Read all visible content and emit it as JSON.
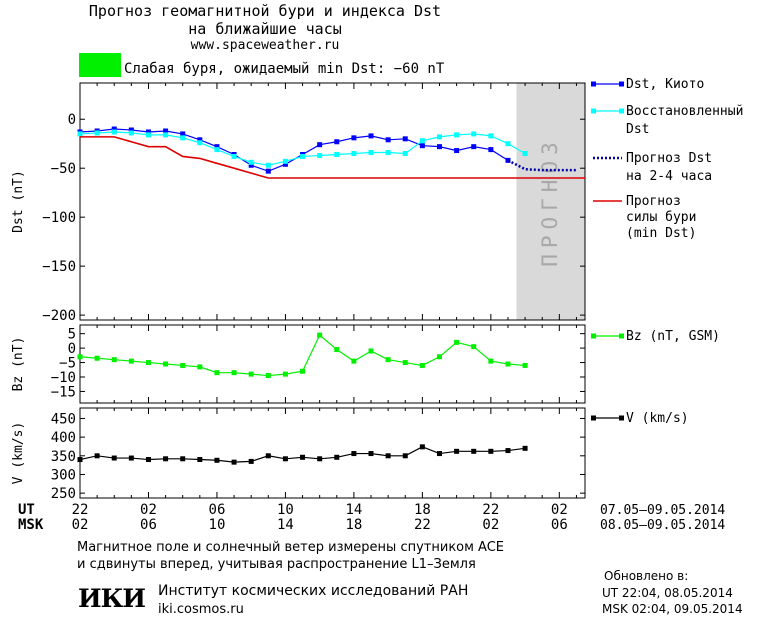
{
  "header": {
    "title_line1": "Прогноз геомагнитной бури и индекса Dst",
    "title_line2": "на ближайшие часы",
    "site": "www.spaceweather.ru",
    "storm_text": "Слабая буря, ожидаемый min Dst: −60 nT",
    "storm_color": "#00f000"
  },
  "chart_data": [
    {
      "type": "line",
      "ylabel": "Dst (nT)",
      "ylim": [
        -205,
        37
      ],
      "yticks": [
        0,
        -50,
        -100,
        -150,
        -200
      ],
      "ytick_labels": [
        "0",
        "−50",
        "−100",
        "−150",
        "−200"
      ],
      "forecast_label": "ПРОГНОЗ",
      "x": [
        0,
        1,
        2,
        3,
        4,
        5,
        6,
        7,
        8,
        9,
        10,
        11,
        12,
        13,
        14,
        15,
        16,
        17,
        18,
        19,
        20,
        21,
        22,
        23,
        24,
        25
      ],
      "series": [
        {
          "name": "Dst, Киото",
          "color": "#0000ff",
          "x": [
            0,
            1,
            2,
            3,
            4,
            5,
            6,
            7,
            8,
            9,
            10,
            11,
            12,
            13,
            14,
            15,
            16,
            17,
            18,
            19,
            20,
            21,
            22,
            23,
            24,
            25
          ],
          "values": [
            -13,
            -12,
            -10,
            -11,
            -13,
            -12,
            -15,
            -21,
            -28,
            -36,
            -47,
            -53,
            -46,
            -36,
            -26,
            -23,
            -19,
            -17,
            -21,
            -20,
            -27,
            -28,
            -32,
            -28,
            -31,
            -42
          ]
        },
        {
          "name_line1": "Восстановленный",
          "name_line2": "Dst",
          "color": "#00ffff",
          "x": [
            0,
            1,
            2,
            3,
            4,
            5,
            6,
            7,
            8,
            9,
            10,
            11,
            12,
            13,
            14,
            15,
            16,
            17,
            18,
            19,
            20,
            21,
            22,
            23,
            24,
            25,
            26
          ],
          "values": [
            -15,
            -14,
            -13,
            -14,
            -16,
            -16,
            -19,
            -24,
            -31,
            -38,
            -44,
            -47,
            -43,
            -38,
            -37,
            -36,
            -35,
            -34,
            -34,
            -35,
            -22,
            -18,
            -16,
            -15,
            -17,
            -25,
            -35
          ]
        },
        {
          "name_line1": "Прогноз Dst",
          "name_line2": "на 2-4 часа",
          "color": "#0000aa",
          "x": [
            25,
            26,
            27,
            28,
            29
          ],
          "values": [
            -42,
            -51,
            -52,
            -52,
            -52
          ]
        },
        {
          "name_line1": "Прогноз",
          "name_line2": "силы бури",
          "name_line3": "(min Dst)",
          "color": "#dd0000",
          "x": [
            0,
            1,
            2,
            3,
            4,
            5,
            6,
            7,
            8,
            9,
            10,
            11,
            12,
            29.5
          ],
          "values": [
            -18,
            -18,
            -18,
            -23,
            -28,
            -28,
            -38,
            -40,
            -45,
            -50,
            -55,
            -60,
            -60,
            -60
          ]
        }
      ]
    },
    {
      "type": "line",
      "ylabel": "Bz (nT)",
      "ylim": [
        -19,
        8
      ],
      "yticks": [
        5,
        0,
        -5,
        -10,
        -15
      ],
      "ytick_labels": [
        "5",
        "0",
        "−5",
        "−10",
        "−15"
      ],
      "series": [
        {
          "name": "Bz (nT, GSM)",
          "color": "#00f000",
          "x": [
            0,
            1,
            2,
            3,
            4,
            5,
            6,
            7,
            8,
            9,
            10,
            11,
            12,
            13,
            14,
            15,
            16,
            17,
            18,
            19,
            20,
            21,
            22,
            23,
            24,
            25,
            26
          ],
          "values": [
            -3,
            -3.5,
            -4,
            -4.5,
            -5,
            -5.5,
            -6,
            -6.5,
            -8.5,
            -8.5,
            -9,
            -9.5,
            -9,
            -8,
            4.5,
            -0.5,
            -4.5,
            -1,
            -4,
            -5,
            -6,
            -3,
            2,
            0.5,
            -4.5,
            -5.5,
            -6
          ]
        }
      ]
    },
    {
      "type": "line",
      "ylabel": "V (km/s)",
      "ylim": [
        237,
        478
      ],
      "yticks": [
        450,
        400,
        350,
        300,
        250
      ],
      "ytick_labels": [
        "450",
        "400",
        "350",
        "300",
        "250"
      ],
      "series": [
        {
          "name": "V (km/s)",
          "color": "#000000",
          "x": [
            0,
            1,
            2,
            3,
            4,
            5,
            6,
            7,
            8,
            9,
            10,
            11,
            12,
            13,
            14,
            15,
            16,
            17,
            18,
            19,
            20,
            21,
            22,
            23,
            24,
            25,
            26
          ],
          "values": [
            340,
            350,
            344,
            344,
            340,
            342,
            342,
            340,
            338,
            333,
            335,
            350,
            342,
            346,
            342,
            346,
            356,
            356,
            350,
            350,
            374,
            356,
            362,
            362,
            362,
            364,
            370
          ]
        }
      ]
    }
  ],
  "time_axis": {
    "ut_label": "UT",
    "msk_label": "MSK",
    "ut_ticks": [
      "22",
      "02",
      "06",
      "10",
      "14",
      "18",
      "22",
      "02"
    ],
    "msk_ticks": [
      "02",
      "06",
      "10",
      "14",
      "18",
      "22",
      "02",
      "06"
    ],
    "ut_range": "07.05–09.05.2014",
    "msk_range": "08.05–09.05.2014"
  },
  "footer": {
    "line1": "Магнитное поле и солнечный ветер измерены спутником ACE",
    "line2": "и сдвинуты вперед, учитывая распространение L1–Земля",
    "logo_text": "ИКИ",
    "institute": "Институт космических исследований РАН",
    "institute_site": "iki.cosmos.ru",
    "updated_label": "Обновлено в:",
    "updated_ut": "UT   22:04, 08.05.2014",
    "updated_msk": "MSK 02:04, 09.05.2014"
  }
}
